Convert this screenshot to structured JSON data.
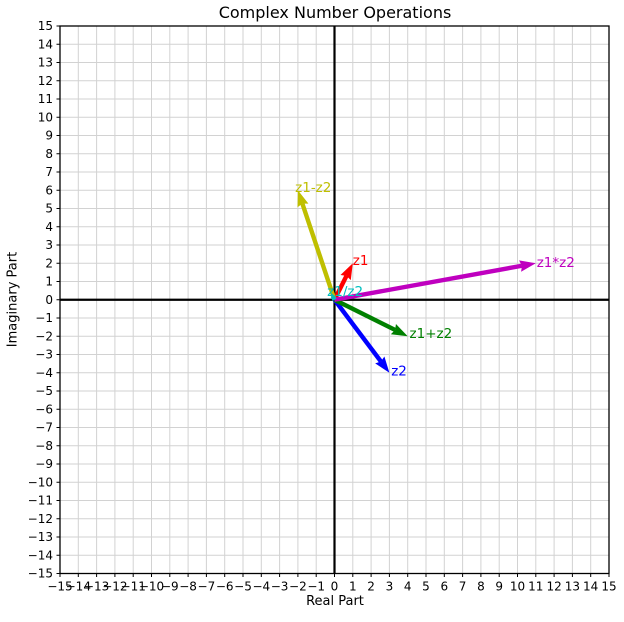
{
  "chart_data": {
    "type": "scatter",
    "subtype": "quiver-vector-plot",
    "title": "Complex Number Operations",
    "xlabel": "Real Part",
    "ylabel": "Imaginary Part",
    "xlim": [
      -15,
      15
    ],
    "ylim": [
      -15,
      15
    ],
    "grid": true,
    "grid_color": "#d2d2d2",
    "spine_color": "#000000",
    "zero_axis_color": "#000000",
    "tick_label_color": "#000000",
    "background": "#ffffff",
    "x_ticks": [
      -15,
      -14,
      -13,
      -12,
      -11,
      -10,
      -9,
      -8,
      -7,
      -6,
      -5,
      -4,
      -3,
      -2,
      -1,
      0,
      1,
      2,
      3,
      4,
      5,
      6,
      7,
      8,
      9,
      10,
      11,
      12,
      13,
      14,
      15
    ],
    "y_ticks": [
      -15,
      -14,
      -13,
      -12,
      -11,
      -10,
      -9,
      -8,
      -7,
      -6,
      -5,
      -4,
      -3,
      -2,
      -1,
      0,
      1,
      2,
      3,
      4,
      5,
      6,
      7,
      8,
      9,
      10,
      11,
      12,
      13,
      14,
      15
    ],
    "vectors_start": [
      0,
      0
    ],
    "vectors": [
      {
        "id": "z1",
        "label": "z1",
        "x": 1,
        "y": 2,
        "color": "#ff0000",
        "label_pos": [
          1.0,
          1.9
        ]
      },
      {
        "id": "z2",
        "label": "z2",
        "x": 3,
        "y": -4,
        "color": "#0000ff",
        "label_pos": [
          3.1,
          -4.15
        ]
      },
      {
        "id": "z1-plus-z2",
        "label": "z1+z2",
        "x": 4,
        "y": -2,
        "color": "#008000",
        "label_pos": [
          4.1,
          -2.1
        ]
      },
      {
        "id": "z1-minus-z2",
        "label": "z1-z2",
        "x": -2,
        "y": 6,
        "color": "#bfbf00",
        "label_pos": [
          -2.15,
          5.9
        ]
      },
      {
        "id": "z1-times-z2",
        "label": "z1*z2",
        "x": 11,
        "y": 2,
        "color": "#bf00bf",
        "label_pos": [
          11.05,
          1.8
        ]
      },
      {
        "id": "z1-div-z2",
        "label": "z1/z2",
        "x": -0.2,
        "y": 0.4,
        "color": "#00bfbf",
        "label_pos": [
          -0.4,
          0.2
        ]
      }
    ]
  }
}
